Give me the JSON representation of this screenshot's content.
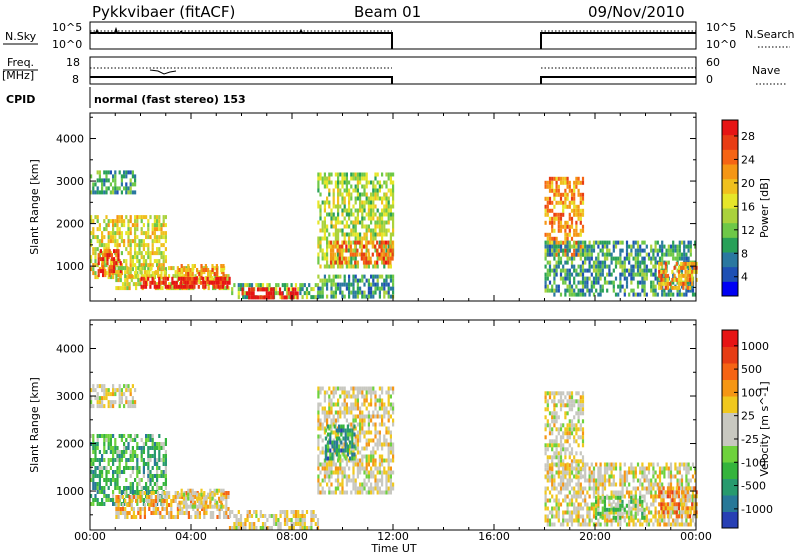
{
  "header": {
    "title": "Pykkvibaer (fitACF)",
    "beam": "Beam 01",
    "date": "09/Nov/2010"
  },
  "status_panels": {
    "nsky_label": "N.Sky",
    "nsky_ticks": [
      "10^5",
      "10^0"
    ],
    "nsearch_label": "N.Search",
    "nsearch_ticks": [
      "10^5",
      "10^0"
    ],
    "freq_label_1": "Freq.",
    "freq_label_2": "[MHz]",
    "freq_ticks": [
      "18",
      "8"
    ],
    "nave_label": "Nave",
    "nave_ticks": [
      "60",
      "0"
    ],
    "cpid_label": "CPID",
    "cpid_text": "normal (fast stereo) 153"
  },
  "chart_data": [
    {
      "type": "heatmap",
      "name": "power",
      "ylabel": "Slant Range [km]",
      "xlabel": "Time UT",
      "x_range_hours": [
        0,
        24
      ],
      "ylim_km": [
        180,
        4600
      ],
      "y_ticks": [
        1000,
        2000,
        3000,
        4000
      ],
      "x_ticks": [
        "00:00",
        "04:00",
        "08:00",
        "12:00",
        "16:00",
        "20:00",
        "00:00"
      ],
      "data_gap_hours": [
        12.0,
        18.0
      ],
      "colorbar": {
        "label": "Power [dB]",
        "ticks": [
          "28",
          "24",
          "20",
          "16",
          "12",
          "8",
          "4"
        ],
        "colors": [
          "#0000f4",
          "#1e50b4",
          "#2a78a0",
          "#28a058",
          "#6ec848",
          "#aad23c",
          "#e6e62a",
          "#f0c01e",
          "#f59614",
          "#f56414",
          "#e83c14",
          "#e61414"
        ]
      },
      "echo_regions": [
        {
          "t_start": 0.0,
          "t_end": 1.8,
          "r_min": 2750,
          "r_max": 3250,
          "level": 3
        },
        {
          "t_start": 0.0,
          "t_end": 3.0,
          "r_min": 700,
          "r_max": 2200,
          "level": 6
        },
        {
          "t_start": 0.3,
          "t_end": 1.2,
          "r_min": 800,
          "r_max": 1400,
          "level": 10
        },
        {
          "t_start": 1.0,
          "t_end": 5.5,
          "r_min": 450,
          "r_max": 1000,
          "level": 6
        },
        {
          "t_start": 3.5,
          "t_end": 5.3,
          "r_min": 650,
          "r_max": 1050,
          "level": 8
        },
        {
          "t_start": 2.0,
          "t_end": 5.5,
          "r_min": 550,
          "r_max": 750,
          "level": 11
        },
        {
          "t_start": 5.5,
          "t_end": 9.0,
          "r_min": 250,
          "r_max": 600,
          "level": 4
        },
        {
          "t_start": 6.0,
          "t_end": 8.2,
          "r_min": 280,
          "r_max": 500,
          "level": 11
        },
        {
          "t_start": 9.0,
          "t_end": 12.0,
          "r_min": 1000,
          "r_max": 3200,
          "level": 5
        },
        {
          "t_start": 9.5,
          "t_end": 12.0,
          "r_min": 1100,
          "r_max": 1600,
          "level": 9
        },
        {
          "t_start": 9.0,
          "t_end": 12.0,
          "r_min": 250,
          "r_max": 800,
          "level": 3
        },
        {
          "t_start": 18.0,
          "t_end": 19.5,
          "r_min": 1300,
          "r_max": 3100,
          "level": 8
        },
        {
          "t_start": 18.0,
          "t_end": 24.0,
          "r_min": 300,
          "r_max": 1600,
          "level": 3
        },
        {
          "t_start": 22.5,
          "t_end": 24.0,
          "r_min": 500,
          "r_max": 1100,
          "level": 8
        }
      ]
    },
    {
      "type": "heatmap",
      "name": "velocity",
      "ylabel": "Slant Range [km]",
      "xlabel": "Time UT",
      "x_range_hours": [
        0,
        24
      ],
      "ylim_km": [
        180,
        4600
      ],
      "y_ticks": [
        1000,
        2000,
        3000,
        4000
      ],
      "x_ticks": [
        "00:00",
        "04:00",
        "08:00",
        "12:00",
        "16:00",
        "20:00",
        "00:00"
      ],
      "data_gap_hours": [
        12.0,
        18.0
      ],
      "colorbar": {
        "label": "Velocity [m s^-1]",
        "ticks": [
          "1000",
          "500",
          "100",
          "25",
          "-25",
          "-100",
          "-500",
          "-1000"
        ],
        "colors": [
          "#2840b4",
          "#287898",
          "#289a6e",
          "#34b43c",
          "#6ed23c",
          "#c8c8c0",
          "#c8c8c0",
          "#f0c81e",
          "#f59614",
          "#f56414",
          "#e63c14",
          "#e61414"
        ]
      },
      "echo_regions": [
        {
          "t_start": 0.0,
          "t_end": 1.8,
          "r_min": 2750,
          "r_max": 3250,
          "level": 6
        },
        {
          "t_start": 0.0,
          "t_end": 3.0,
          "r_min": 700,
          "r_max": 2200,
          "level": 3
        },
        {
          "t_start": 1.0,
          "t_end": 5.5,
          "r_min": 450,
          "r_max": 1000,
          "level": 7
        },
        {
          "t_start": 3.5,
          "t_end": 5.3,
          "r_min": 650,
          "r_max": 1050,
          "level": 6
        },
        {
          "t_start": 5.5,
          "t_end": 9.0,
          "r_min": 250,
          "r_max": 600,
          "level": 6
        },
        {
          "t_start": 9.0,
          "t_end": 12.0,
          "r_min": 1000,
          "r_max": 3200,
          "level": 6
        },
        {
          "t_start": 9.3,
          "t_end": 10.5,
          "r_min": 1700,
          "r_max": 2400,
          "level": 2
        },
        {
          "t_start": 18.0,
          "t_end": 19.5,
          "r_min": 1300,
          "r_max": 3100,
          "level": 6
        },
        {
          "t_start": 18.0,
          "t_end": 24.0,
          "r_min": 300,
          "r_max": 1600,
          "level": 6
        },
        {
          "t_start": 20.0,
          "t_end": 22.0,
          "r_min": 400,
          "r_max": 900,
          "level": 4
        },
        {
          "t_start": 22.5,
          "t_end": 24.0,
          "r_min": 500,
          "r_max": 1100,
          "level": 8
        }
      ]
    }
  ]
}
